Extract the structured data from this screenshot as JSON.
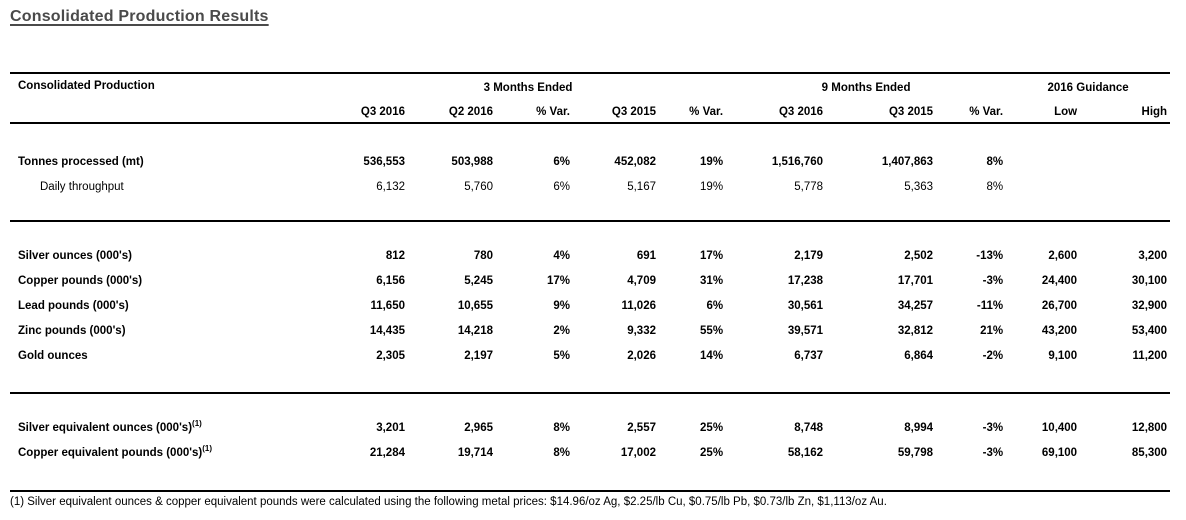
{
  "page": {
    "title": "Consolidated Production Results"
  },
  "colors": {
    "title_text": "#4a4a4a",
    "body_text": "#000000",
    "rule": "#000000",
    "background": "#ffffff"
  },
  "table": {
    "corner_label": "Consolidated Production",
    "groups": [
      {
        "label": "3 Months Ended",
        "span": 5
      },
      {
        "label": "9 Months Ended",
        "span": 3
      },
      {
        "label": "2016 Guidance",
        "span": 2
      }
    ],
    "columns": [
      "Q3 2016",
      "Q2 2016",
      "% Var.",
      "Q3 2015",
      "% Var.",
      "Q3 2016",
      "Q3 2015",
      "% Var.",
      "Low",
      "High"
    ],
    "sections": [
      {
        "rows": [
          {
            "label": "Tonnes processed (mt)",
            "bold": true,
            "indent": false,
            "values": [
              "536,553",
              "503,988",
              "6%",
              "452,082",
              "19%",
              "1,516,760",
              "1,407,863",
              "8%",
              "",
              ""
            ]
          },
          {
            "label": "Daily throughput",
            "bold": false,
            "indent": true,
            "values": [
              "6,132",
              "5,760",
              "6%",
              "5,167",
              "19%",
              "5,778",
              "5,363",
              "8%",
              "",
              ""
            ]
          }
        ]
      },
      {
        "rows": [
          {
            "label": "Silver ounces (000's)",
            "bold": true,
            "indent": false,
            "values": [
              "812",
              "780",
              "4%",
              "691",
              "17%",
              "2,179",
              "2,502",
              "-13%",
              "2,600",
              "3,200"
            ]
          },
          {
            "label": "Copper pounds (000's)",
            "bold": true,
            "indent": false,
            "values": [
              "6,156",
              "5,245",
              "17%",
              "4,709",
              "31%",
              "17,238",
              "17,701",
              "-3%",
              "24,400",
              "30,100"
            ]
          },
          {
            "label": "Lead pounds (000's)",
            "bold": true,
            "indent": false,
            "values": [
              "11,650",
              "10,655",
              "9%",
              "11,026",
              "6%",
              "30,561",
              "34,257",
              "-11%",
              "26,700",
              "32,900"
            ]
          },
          {
            "label": "Zinc pounds (000's)",
            "bold": true,
            "indent": false,
            "values": [
              "14,435",
              "14,218",
              "2%",
              "9,332",
              "55%",
              "39,571",
              "32,812",
              "21%",
              "43,200",
              "53,400"
            ]
          },
          {
            "label": "Gold ounces",
            "bold": true,
            "indent": false,
            "values": [
              "2,305",
              "2,197",
              "5%",
              "2,026",
              "14%",
              "6,737",
              "6,864",
              "-2%",
              "9,100",
              "11,200"
            ]
          }
        ]
      },
      {
        "rows": [
          {
            "label": "Silver equivalent ounces (000's)",
            "sup": "(1)",
            "bold": true,
            "indent": false,
            "values": [
              "3,201",
              "2,965",
              "8%",
              "2,557",
              "25%",
              "8,748",
              "8,994",
              "-3%",
              "10,400",
              "12,800"
            ]
          },
          {
            "label": "Copper equivalent pounds (000's)",
            "sup": "(1)",
            "bold": true,
            "indent": false,
            "values": [
              "21,284",
              "19,714",
              "8%",
              "17,002",
              "25%",
              "58,162",
              "59,798",
              "-3%",
              "69,100",
              "85,300"
            ]
          }
        ]
      }
    ],
    "footnote": "(1) Silver equivalent ounces & copper equivalent pounds were calculated using the following metal prices: $14.96/oz Ag, $2.25/lb Cu, $0.75/lb Pb, $0.73/lb Zn, $1,113/oz Au."
  }
}
